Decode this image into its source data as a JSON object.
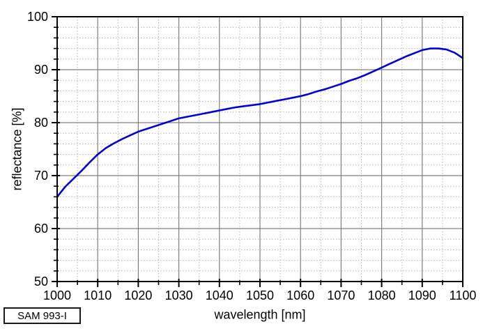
{
  "figure": {
    "background": "#ffffff",
    "frame_color": "#000000",
    "major_grid_color": "#7f7f7f",
    "minor_grid_color": "#b5b5b5",
    "tick_label_color": "#000000",
    "annotation_box": {
      "label": "SAM 993-I"
    }
  },
  "chart_data": {
    "type": "line",
    "title": "",
    "xlabel": "wavelength [nm]",
    "ylabel": "reflectance [%]",
    "xlim": [
      1000,
      1100
    ],
    "ylim": [
      50,
      100
    ],
    "x_major_ticks": [
      1000,
      1010,
      1020,
      1030,
      1040,
      1050,
      1060,
      1070,
      1080,
      1090,
      1100
    ],
    "x_minor_step": 5,
    "y_major_ticks": [
      50,
      60,
      70,
      80,
      90,
      100
    ],
    "y_minor_step": 2,
    "grid": {
      "major": "solid",
      "minor": "dotted"
    },
    "legend_position": "none",
    "annotation": "SAM 993-I",
    "series": [
      {
        "name": "SAM 993-I",
        "color": "#0000d6",
        "x": [
          1000,
          1002,
          1004,
          1006,
          1008,
          1010,
          1012,
          1014,
          1016,
          1018,
          1020,
          1022,
          1024,
          1026,
          1028,
          1030,
          1032,
          1034,
          1036,
          1038,
          1040,
          1042,
          1044,
          1046,
          1048,
          1050,
          1052,
          1054,
          1056,
          1058,
          1060,
          1062,
          1064,
          1066,
          1068,
          1070,
          1072,
          1074,
          1076,
          1078,
          1080,
          1082,
          1084,
          1086,
          1088,
          1090,
          1092,
          1094,
          1096,
          1098,
          1100
        ],
        "y": [
          66.0,
          67.9,
          69.4,
          70.9,
          72.5,
          74.0,
          75.2,
          76.1,
          76.9,
          77.6,
          78.3,
          78.8,
          79.3,
          79.8,
          80.3,
          80.8,
          81.1,
          81.4,
          81.7,
          82.0,
          82.3,
          82.6,
          82.9,
          83.1,
          83.3,
          83.5,
          83.8,
          84.1,
          84.4,
          84.7,
          85.0,
          85.4,
          85.9,
          86.3,
          86.8,
          87.3,
          87.9,
          88.4,
          89.0,
          89.7,
          90.4,
          91.1,
          91.8,
          92.5,
          93.1,
          93.7,
          94.0,
          94.0,
          93.8,
          93.2,
          92.2
        ]
      }
    ]
  }
}
